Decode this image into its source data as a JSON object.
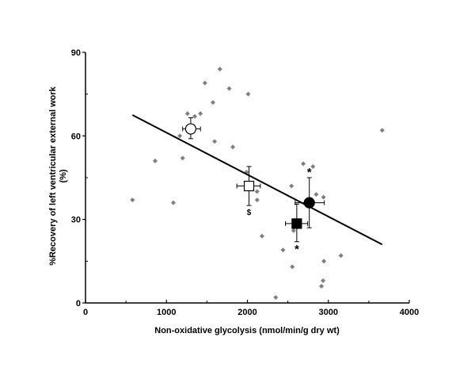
{
  "chart_data": {
    "type": "scatter",
    "title": "",
    "xlabel": "Non-oxidative glycolysis (nmol/min/g dry wt)",
    "ylabel": "%Recovery of left ventricular external work",
    "ylabel_line2": "(%)",
    "xlim": [
      0,
      4000
    ],
    "ylim": [
      0,
      90
    ],
    "x_ticks": [
      0,
      1000,
      2000,
      3000,
      4000
    ],
    "x_minor_ticks": [
      500,
      1500,
      2500,
      3500
    ],
    "y_ticks": [
      0,
      30,
      60,
      90
    ],
    "y_minor_ticks": [
      15,
      45,
      75
    ],
    "grid": false,
    "legend": null,
    "series": [
      {
        "name": "individual hearts",
        "marker": "diamond",
        "color": "#7f7f7f",
        "points": [
          {
            "x": 580,
            "y": 37
          },
          {
            "x": 860,
            "y": 51
          },
          {
            "x": 1085,
            "y": 36
          },
          {
            "x": 1165,
            "y": 60
          },
          {
            "x": 1200,
            "y": 52
          },
          {
            "x": 1260,
            "y": 68
          },
          {
            "x": 1350,
            "y": 67
          },
          {
            "x": 1420,
            "y": 68
          },
          {
            "x": 1475,
            "y": 79
          },
          {
            "x": 1575,
            "y": 72
          },
          {
            "x": 1595,
            "y": 58
          },
          {
            "x": 1660,
            "y": 84
          },
          {
            "x": 1775,
            "y": 77
          },
          {
            "x": 1820,
            "y": 56
          },
          {
            "x": 1990,
            "y": 47
          },
          {
            "x": 2010,
            "y": 75
          },
          {
            "x": 2120,
            "y": 40
          },
          {
            "x": 2120,
            "y": 37
          },
          {
            "x": 2180,
            "y": 24
          },
          {
            "x": 2350,
            "y": 2
          },
          {
            "x": 2440,
            "y": 19
          },
          {
            "x": 2545,
            "y": 42
          },
          {
            "x": 2555,
            "y": 13
          },
          {
            "x": 2570,
            "y": 26
          },
          {
            "x": 2690,
            "y": 50
          },
          {
            "x": 2810,
            "y": 49
          },
          {
            "x": 2850,
            "y": 39
          },
          {
            "x": 2915,
            "y": 6
          },
          {
            "x": 2935,
            "y": 8
          },
          {
            "x": 2940,
            "y": 38
          },
          {
            "x": 2945,
            "y": 15
          },
          {
            "x": 3155,
            "y": 17
          },
          {
            "x": 3665,
            "y": 62
          }
        ]
      },
      {
        "name": "group means",
        "marker": "mixed",
        "color": "#000000",
        "points": [
          {
            "shape": "open-circle",
            "x": 1300,
            "y": 62.5,
            "x_err": [
              1200,
              1420
            ],
            "y_err": [
              59,
              66.5
            ],
            "annotation": ""
          },
          {
            "shape": "open-square",
            "x": 2020,
            "y": 42,
            "x_err": [
              1870,
              2160
            ],
            "y_err": [
              35,
              49
            ],
            "annotation": "$",
            "annotation_pos": "below"
          },
          {
            "shape": "filled-circle",
            "x": 2765,
            "y": 36,
            "x_err": [
              2590,
              2950
            ],
            "y_err": [
              27,
              45
            ],
            "annotation": "*",
            "annotation_pos": "above"
          },
          {
            "shape": "filled-square",
            "x": 2610,
            "y": 28.5,
            "x_err": [
              2470,
              2745
            ],
            "y_err": [
              22,
              35.5
            ],
            "annotation": "*",
            "annotation_pos": "below"
          }
        ]
      }
    ],
    "regression_line": {
      "x": [
        580,
        3665
      ],
      "y": [
        67.5,
        21
      ],
      "color": "#000000"
    }
  }
}
